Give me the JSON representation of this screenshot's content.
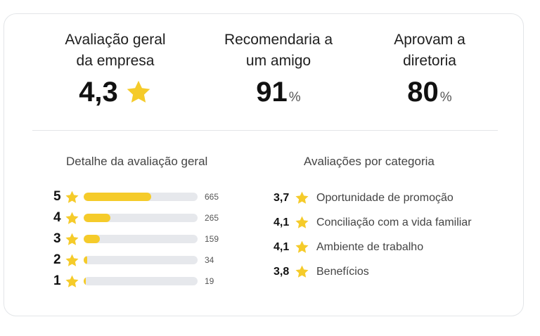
{
  "summary": {
    "overall": {
      "label": "Avaliação geral\nda empresa",
      "value": "4,3"
    },
    "recommend": {
      "label": "Recomendaria a\num amigo",
      "value": "91",
      "unit": "%"
    },
    "approve": {
      "label": "Aprovam a\ndiretoria",
      "value": "80",
      "unit": "%"
    }
  },
  "distribution": {
    "title": "Detalhe da avaliação geral",
    "rows": [
      {
        "stars": "5",
        "count": "665",
        "fraction": 0.59
      },
      {
        "stars": "4",
        "count": "265",
        "fraction": 0.235
      },
      {
        "stars": "3",
        "count": "159",
        "fraction": 0.14
      },
      {
        "stars": "2",
        "count": "34",
        "fraction": 0.03
      },
      {
        "stars": "1",
        "count": "19",
        "fraction": 0.02
      }
    ]
  },
  "categories": {
    "title": "Avaliações por categoria",
    "items": [
      {
        "score": "3,7",
        "name": "Oportunidade de promoção"
      },
      {
        "score": "4,1",
        "name": "Conciliação com a vida familiar"
      },
      {
        "score": "4,1",
        "name": "Ambiente de trabalho"
      },
      {
        "score": "3,8",
        "name": "Benefícios"
      }
    ]
  },
  "colors": {
    "star": "#f5cb2a",
    "bar_track": "#e6e8ec"
  },
  "icons": {
    "star": "star-icon"
  }
}
